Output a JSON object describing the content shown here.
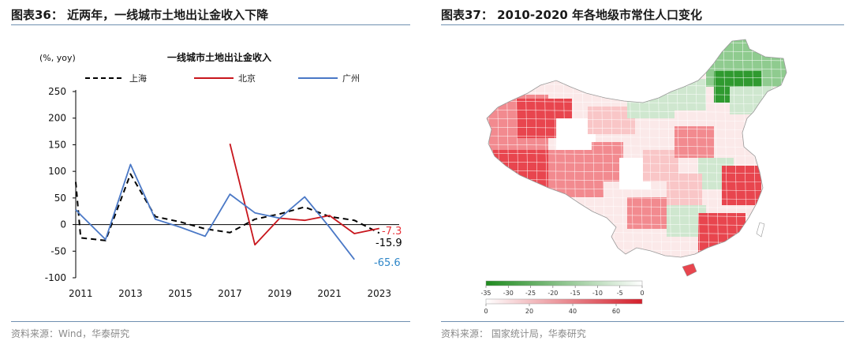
{
  "left": {
    "figure_title": "图表36：  近两年，一线城市土地出让金收入下降",
    "source": "资料来源：Wind，华泰研究"
  },
  "right": {
    "figure_title": "图表37：  2010-2020 年各地级市常住人口变化",
    "source": "资料来源：    国家统计局，华泰研究",
    "legend_negative": {
      "ticks": [
        "-35",
        "-30",
        "-25",
        "-20",
        "-15",
        "-10",
        "-5",
        "0"
      ],
      "color_dark": "#1e8a1e",
      "color_light": "#ffffff"
    },
    "legend_positive": {
      "ticks": [
        "0",
        "20",
        "40",
        "60"
      ],
      "color_light": "#ffffff",
      "color_dark": "#d41e2a"
    },
    "map_colors": {
      "strong_red": "#e8454e",
      "mid_red": "#f28a8f",
      "light_red": "#f9c6c7",
      "pale": "#fbe9e9",
      "white": "#ffffff",
      "light_green": "#cfe7cf",
      "mid_green": "#8fcb8f",
      "dark_green": "#2f9a2f"
    }
  },
  "chart_data": {
    "type": "line",
    "title": "一线城市土地出让金收入",
    "ylabel": "(%, yoy)",
    "ylim": [
      -100,
      250
    ],
    "yticks": [
      -100,
      -50,
      0,
      50,
      100,
      150,
      200,
      250
    ],
    "xlim": [
      2010.8,
      2023.8
    ],
    "xticks": [
      2011,
      2013,
      2015,
      2017,
      2019,
      2021,
      2023
    ],
    "legend_position": "top",
    "series": [
      {
        "name": "上海",
        "color": "#000000",
        "style": "dashed",
        "x": [
          2010.8,
          2011,
          2012,
          2013,
          2014,
          2015,
          2016,
          2017,
          2018,
          2019,
          2020,
          2021,
          2022,
          2023
        ],
        "y": [
          80,
          -25,
          -30,
          95,
          15,
          5,
          -8,
          -15,
          10,
          20,
          33,
          15,
          8,
          -15.9
        ],
        "end_label": "-15.9",
        "end_label_color": "#000000"
      },
      {
        "name": "北京",
        "color": "#c8161d",
        "style": "solid",
        "x": [
          2017,
          2018,
          2019,
          2020,
          2021,
          2022,
          2023
        ],
        "y": [
          152,
          -38,
          12,
          8,
          17,
          -17,
          -7.3
        ],
        "end_label": "-7.3",
        "end_label_color": "#e8333a"
      },
      {
        "name": "广州",
        "color": "#4a78c6",
        "style": "solid",
        "x": [
          2010.8,
          2011,
          2012,
          2013,
          2014,
          2015,
          2016,
          2017,
          2018,
          2019,
          2020,
          2021,
          2022
        ],
        "y": [
          28,
          18,
          -28,
          113,
          10,
          -5,
          -22,
          57,
          22,
          12,
          52,
          -5,
          -65.6
        ],
        "end_label": "-65.6",
        "end_label_color": "#2e86c8"
      }
    ]
  }
}
